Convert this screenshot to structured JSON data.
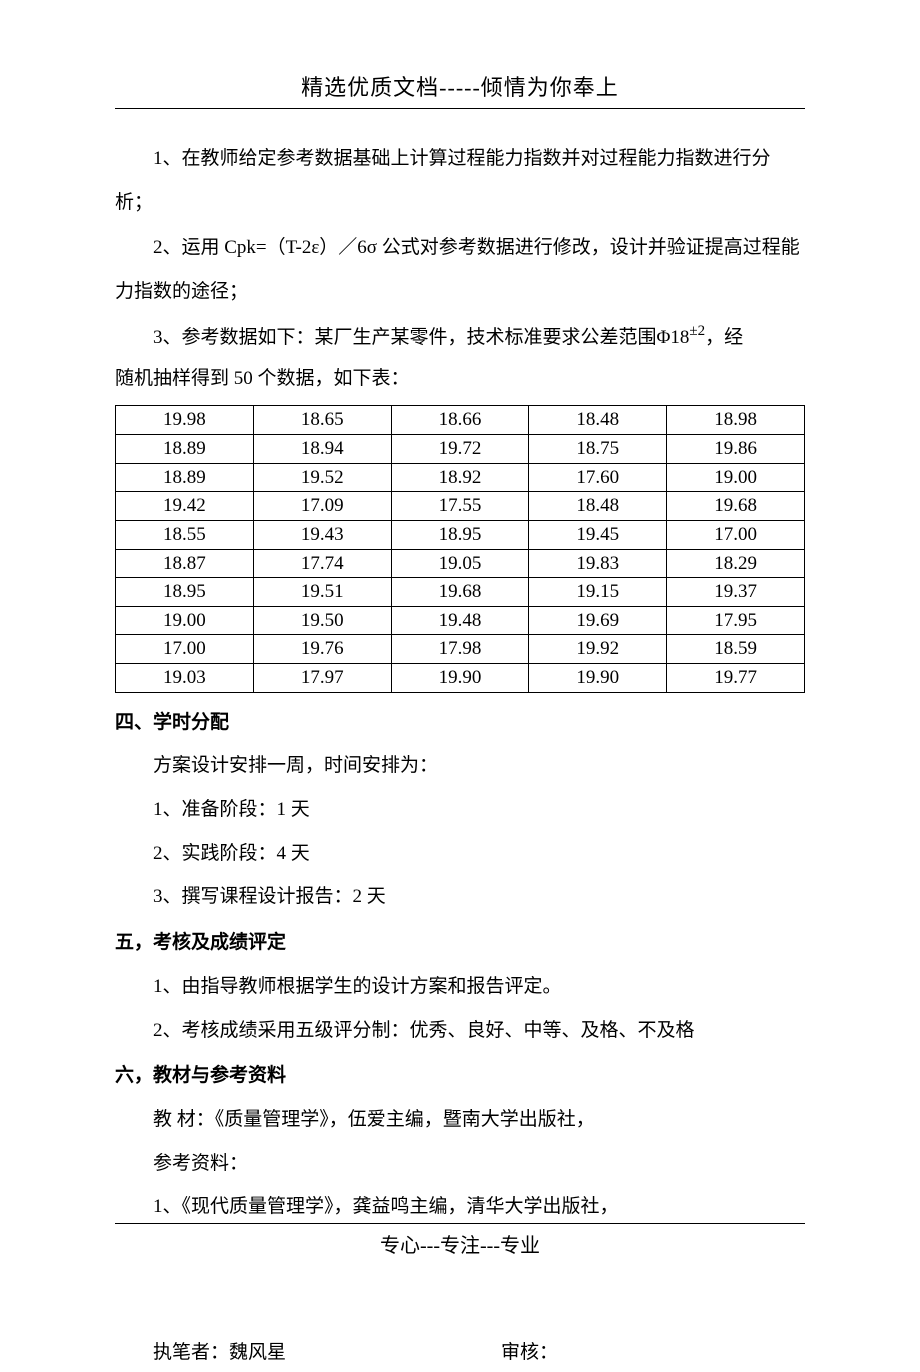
{
  "header": {
    "text": "精选优质文档-----倾情为你奉上"
  },
  "content": {
    "para1": "1、在教师给定参考数据基础上计算过程能力指数并对过程能力指数进行分析；",
    "para2": "2、运用 Cpk=（T-2ε）／6σ 公式对参考数据进行修改，设计并验证提高过程能力指数的途径；",
    "para3_pre": "3、参考数据如下：某厂生产某零件，技术标准要求公差范围",
    "para3_phi": "Φ18",
    "para3_pm": "±2",
    "para3_post": "，经随机抽样得到 50 个数据，如下表：",
    "para3_line2": "随机抽样得到 50 个数据，如下表："
  },
  "table": {
    "columns": 5,
    "border_color": "#000000",
    "background_color": "#ffffff",
    "font_size": 19,
    "rows": [
      [
        "19.98",
        "18.65",
        "18.66",
        "18.48",
        "18.98"
      ],
      [
        "18.89",
        "18.94",
        "19.72",
        "18.75",
        "19.86"
      ],
      [
        "18.89",
        "19.52",
        "18.92",
        "17.60",
        "19.00"
      ],
      [
        "19.42",
        "17.09",
        "17.55",
        "18.48",
        "19.68"
      ],
      [
        "18.55",
        "19.43",
        "18.95",
        "19.45",
        "17.00"
      ],
      [
        "18.87",
        "17.74",
        "19.05",
        "19.83",
        "18.29"
      ],
      [
        "18.95",
        "19.51",
        "19.68",
        "19.15",
        "19.37"
      ],
      [
        "19.00",
        "19.50",
        "19.48",
        "19.69",
        "17.95"
      ],
      [
        "17.00",
        "19.76",
        "17.98",
        "19.92",
        "18.59"
      ],
      [
        "19.03",
        "17.97",
        "19.90",
        "19.90",
        "19.77"
      ]
    ]
  },
  "sections": {
    "sec4": {
      "heading": "四、学时分配",
      "items": [
        "方案设计安排一周，时间安排为：",
        "1、准备阶段：1 天",
        "2、实践阶段：4 天",
        "3、撰写课程设计报告：2 天"
      ]
    },
    "sec5": {
      "heading": "五，考核及成绩评定",
      "items": [
        "1、由指导教师根据学生的设计方案和报告评定。",
        "2、考核成绩采用五级评分制：优秀、良好、中等、及格、不及格"
      ]
    },
    "sec6": {
      "heading": "六，教材与参考资料",
      "items": [
        "教   材：《质量管理学》，伍爱主编，暨南大学出版社，",
        "参考资料：",
        "1、《现代质量管理学》，龚益鸣主编，清华大学出版社，"
      ]
    }
  },
  "signature": {
    "author_label": "执笔者：",
    "author_name": "魏风星",
    "reviewer_label": "审核："
  },
  "footer": {
    "text": "专心---专注---专业"
  }
}
